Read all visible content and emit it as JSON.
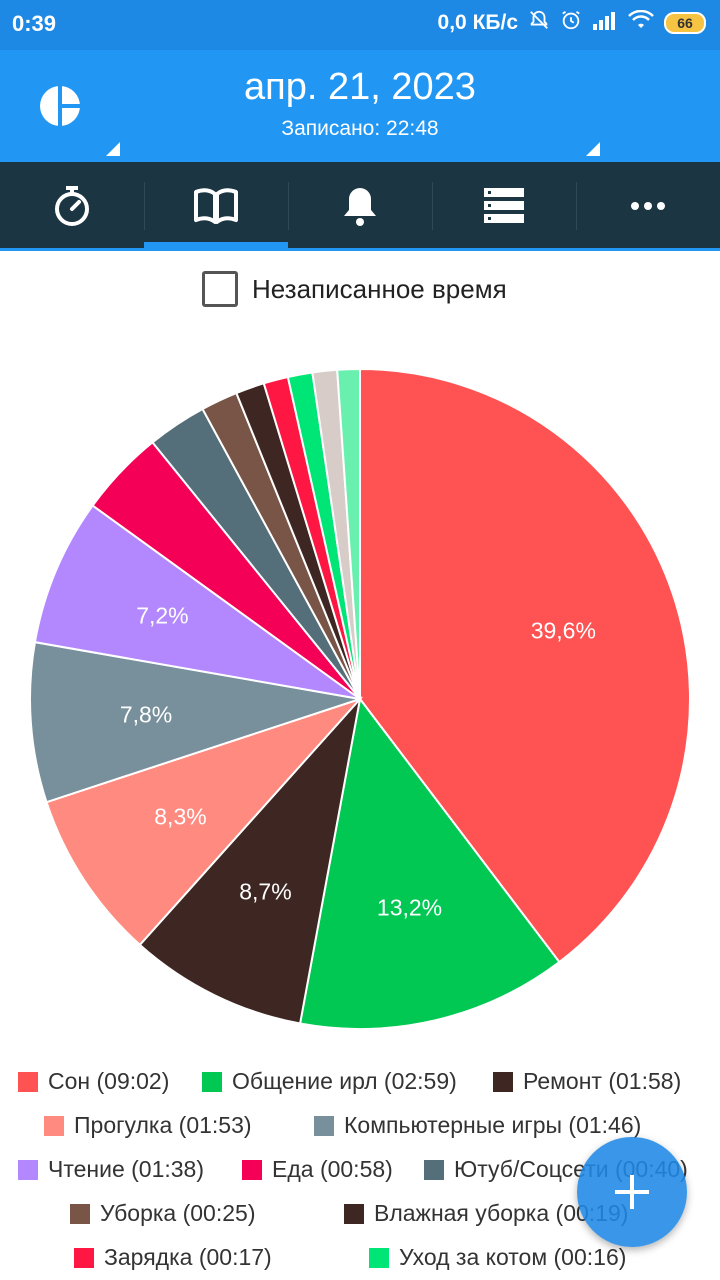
{
  "status": {
    "time": "0:39",
    "speed": "0,0 КБ/с",
    "battery": "66"
  },
  "header": {
    "date": "апр. 21, 2023",
    "recorded": "Записано: 22:48"
  },
  "tabs": [
    {
      "name": "timer",
      "icon": "stopwatch-icon"
    },
    {
      "name": "journal",
      "icon": "book-icon",
      "active": true
    },
    {
      "name": "reminders",
      "icon": "bell-icon"
    },
    {
      "name": "list",
      "icon": "list-icon"
    },
    {
      "name": "more",
      "icon": "more-icon"
    }
  ],
  "unrecorded": {
    "label": "Незаписанное время",
    "checked": false
  },
  "chart_data": {
    "type": "pie",
    "slices": [
      {
        "label": "Сон",
        "time": "09:02",
        "percent": 39.6,
        "color": "#ff5252",
        "pct_label": "39,6%"
      },
      {
        "label": "Общение ирл",
        "time": "02:59",
        "percent": 13.2,
        "color": "#00c853",
        "pct_label": "13,2%"
      },
      {
        "label": "Ремонт",
        "time": "01:58",
        "percent": 8.7,
        "color": "#3e2723",
        "pct_label": "8,7%"
      },
      {
        "label": "Прогулка",
        "time": "01:53",
        "percent": 8.3,
        "color": "#ff8a80",
        "pct_label": "8,3%"
      },
      {
        "label": "Компьютерные игры",
        "time": "01:46",
        "percent": 7.8,
        "color": "#78909c",
        "pct_label": "7,8%"
      },
      {
        "label": "Чтение",
        "time": "01:38",
        "percent": 7.2,
        "color": "#b388ff",
        "pct_label": "7,2%"
      },
      {
        "label": "Еда",
        "time": "00:58",
        "percent": 4.2,
        "color": "#f50057",
        "pct_label": ""
      },
      {
        "label": "Ютуб/Соцсети",
        "time": "00:40",
        "percent": 2.9,
        "color": "#546e7a",
        "pct_label": ""
      },
      {
        "label": "Уборка",
        "time": "00:25",
        "percent": 1.8,
        "color": "#795548",
        "pct_label": ""
      },
      {
        "label": "Влажная уборка",
        "time": "00:19",
        "percent": 1.4,
        "color": "#3e2723",
        "pct_label": ""
      },
      {
        "label": "Зарядка",
        "time": "00:17",
        "percent": 1.2,
        "color": "#ff1744",
        "pct_label": ""
      },
      {
        "label": "Уход за котом",
        "time": "00:16",
        "percent": 1.2,
        "color": "#00e676",
        "pct_label": ""
      },
      {
        "label": "",
        "time": "",
        "percent": 1.2,
        "color": "#d7ccc8",
        "pct_label": ""
      },
      {
        "label": "",
        "time": "",
        "percent": 1.1,
        "color": "#69f0ae",
        "pct_label": ""
      }
    ]
  },
  "legend": [
    {
      "text": "Сон (09:02)",
      "color": "#ff5252"
    },
    {
      "text": "Общение ирл (02:59)",
      "color": "#00c853"
    },
    {
      "text": "Ремонт  (01:58)",
      "color": "#3e2723"
    },
    {
      "text": "Прогулка (01:53)",
      "color": "#ff8a80"
    },
    {
      "text": "Компьютерные игры  (01:46)",
      "color": "#78909c"
    },
    {
      "text": "Чтение (01:38)",
      "color": "#b388ff"
    },
    {
      "text": "Еда (00:58)",
      "color": "#f50057"
    },
    {
      "text": "Ютуб/Соцсети (00:40)",
      "color": "#546e7a"
    },
    {
      "text": "Уборка (00:25)",
      "color": "#795548"
    },
    {
      "text": "Влажная уборка  (00:19)",
      "color": "#3e2723"
    },
    {
      "text": "Зарядка  (00:17)",
      "color": "#ff1744"
    },
    {
      "text": "Уход за котом  (00:16)",
      "color": "#00e676"
    }
  ],
  "fab": {
    "icon": "plus-icon"
  }
}
